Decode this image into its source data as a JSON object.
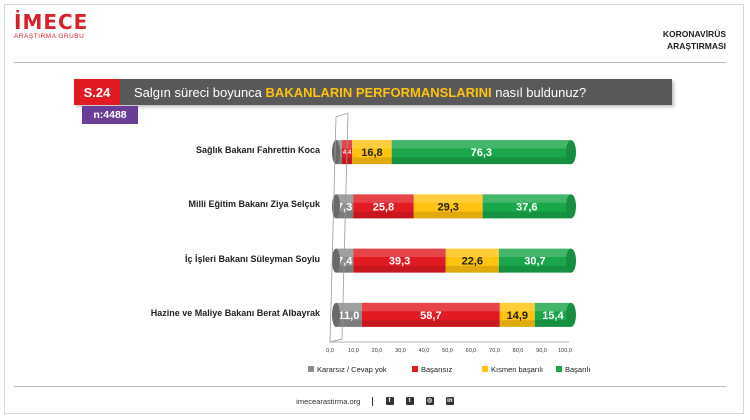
{
  "brand": {
    "name": "İMECE",
    "subtitle": "ARAŞTIRMA GRUBU"
  },
  "report": {
    "line1": "KORONAVİRÜS",
    "line2": "ARAŞTIRMASI"
  },
  "question": {
    "code": "S.24",
    "text_before": "Salgın süreci boyunca",
    "text_highlight": "BAKANLARIN PERFORMANSLARINI",
    "text_after": "nasıl buldunuz?",
    "sample": "n:4488"
  },
  "footer": {
    "website": "imecearastirma.org",
    "icons": [
      "facebook-icon",
      "twitter-icon",
      "instagram-icon",
      "linkedin-icon"
    ]
  },
  "chart_data": {
    "type": "bar",
    "orientation": "horizontal",
    "stacked": true,
    "categories": [
      "Sağlık Bakanı Fahrettin Koca",
      "Milli Eğitim Bakanı Ziya Selçuk",
      "İç İşleri Bakanı Süleyman Soylu",
      "Hazine ve Maliye Bakanı Berat Albayrak"
    ],
    "series": [
      {
        "name": "Kararsız / Cevap yok",
        "color": "#8c8c8c",
        "values": [
          2.5,
          7.3,
          7.4,
          11.0
        ],
        "labels": [
          "",
          "7,3",
          "7,4",
          "11,0"
        ]
      },
      {
        "name": "Başarısız",
        "color": "#e21b23",
        "values": [
          4.4,
          25.8,
          39.3,
          58.7
        ],
        "labels": [
          "4,4",
          "25,8",
          "39,3",
          "58,7"
        ]
      },
      {
        "name": "Kısmen başarılı",
        "color": "#ffc20e",
        "values": [
          16.8,
          29.3,
          22.6,
          14.9
        ],
        "labels": [
          "16,8",
          "29,3",
          "22,6",
          "14,9"
        ]
      },
      {
        "name": "Başarılı",
        "color": "#1aa64a",
        "values": [
          76.3,
          37.6,
          30.7,
          15.4
        ],
        "labels": [
          "76,3",
          "37,6",
          "30,7",
          "15,4"
        ]
      }
    ],
    "xlim": [
      0,
      100
    ],
    "xticks": [
      "0,0",
      "10,0",
      "20,0",
      "30,0",
      "40,0",
      "50,0",
      "60,0",
      "70,0",
      "80,0",
      "90,0",
      "100,0"
    ],
    "legend_position": "bottom",
    "grid": false
  }
}
